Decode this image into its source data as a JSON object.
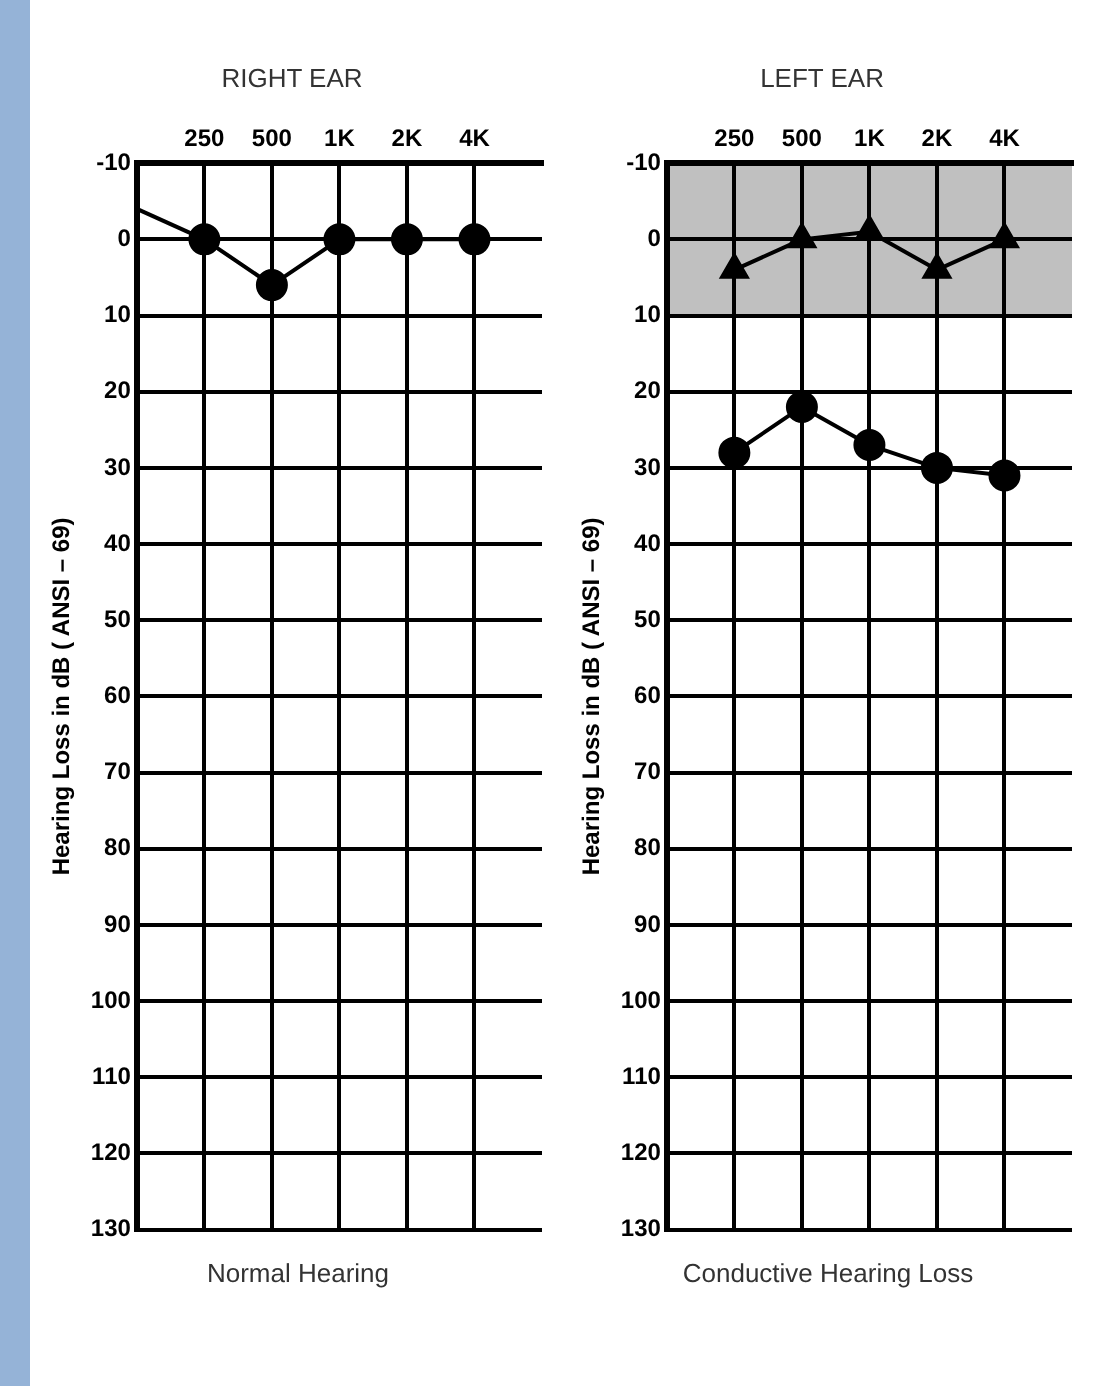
{
  "chart_data": [
    {
      "type": "line",
      "title": "RIGHT EAR",
      "ylabel": "Hearing Loss in dB ( ANSI – 69)",
      "annotations": [
        "Normal Hearing"
      ],
      "log": "x",
      "xlim": [
        125,
        8000
      ],
      "xticks": [
        {
          "value": 250,
          "label": "250"
        },
        {
          "value": 500,
          "label": "500"
        },
        {
          "value": 1000,
          "label": "1K"
        },
        {
          "value": 2000,
          "label": "2K"
        },
        {
          "value": 4000,
          "label": "4K"
        }
      ],
      "ylim": [
        130,
        -10
      ],
      "yticks": [
        -10,
        0,
        10,
        20,
        30,
        40,
        50,
        60,
        70,
        80,
        90,
        100,
        110,
        120,
        130
      ],
      "grid": true,
      "legend": false,
      "series": [
        {
          "color": "#000000",
          "marker": "circle",
          "x": [
            250,
            500,
            1000,
            2000,
            4000
          ],
          "values": [
            0,
            6,
            0,
            0,
            0
          ]
        },
        {
          "color": "#000000",
          "marker": "none",
          "x": [
            125,
            250
          ],
          "values": [
            -4,
            0
          ]
        }
      ]
    },
    {
      "type": "line",
      "title": "LEFT EAR",
      "ylabel": "Hearing Loss in dB ( ANSI – 69)",
      "annotations": [
        "Conductive Hearing Loss"
      ],
      "log": "x",
      "xlim": [
        125,
        8000
      ],
      "xticks": [
        {
          "value": 250,
          "label": "250"
        },
        {
          "value": 500,
          "label": "500"
        },
        {
          "value": 1000,
          "label": "1K"
        },
        {
          "value": 2000,
          "label": "2K"
        },
        {
          "value": 4000,
          "label": "4K"
        }
      ],
      "ylim": [
        130,
        -10
      ],
      "yticks": [
        -10,
        0,
        10,
        20,
        30,
        40,
        50,
        60,
        70,
        80,
        90,
        100,
        110,
        120,
        130
      ],
      "grid": true,
      "legend": false,
      "bands": [
        {
          "axis": "y",
          "from": -10,
          "to": 10,
          "color": "#c0c0c0"
        }
      ],
      "series": [
        {
          "color": "#000000",
          "marker": "triangle",
          "x": [
            250,
            500,
            1000,
            2000,
            4000
          ],
          "values": [
            4,
            0,
            -1,
            4,
            0
          ]
        },
        {
          "color": "#000000",
          "marker": "circle",
          "x": [
            250,
            500,
            1000,
            2000,
            4000
          ],
          "values": [
            28,
            22,
            27,
            30,
            31
          ]
        }
      ]
    }
  ]
}
